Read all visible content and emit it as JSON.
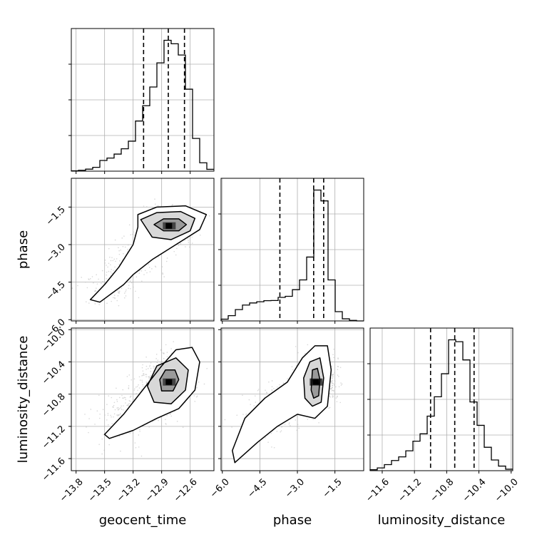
{
  "chart_data": {
    "type": "corner",
    "parameters": [
      "geocent_time",
      "phase",
      "luminosity_distance"
    ],
    "axis_labels": {
      "geocent_time": "geocent_time",
      "phase": "phase",
      "luminosity_distance": "luminosity_distance"
    },
    "ranges": {
      "geocent_time": [
        -13.85,
        -12.35
      ],
      "phase": [
        -6.05,
        -0.35
      ],
      "luminosity_distance": [
        -11.75,
        -9.98
      ]
    },
    "ticks": {
      "geocent_time": [
        -13.8,
        -13.5,
        -13.2,
        -12.9,
        -12.6
      ],
      "phase": [
        -6.0,
        -4.5,
        -3.0,
        -1.5
      ],
      "luminosity_distance": [
        -11.6,
        -11.2,
        -10.8,
        -10.4,
        -10.0
      ]
    },
    "tick_labels": {
      "geocent_time": [
        "−13.8",
        "−13.5",
        "−13.2",
        "−12.9",
        "−12.6"
      ],
      "phase": [
        "−6.0",
        "−4.5",
        "−3.0",
        "−1.5"
      ],
      "luminosity_distance": [
        "−11.6",
        "−11.2",
        "−10.8",
        "−10.4",
        "−10.0"
      ]
    },
    "grid": true,
    "quantiles": {
      "geocent_time": [
        -13.09,
        -12.83,
        -12.66
      ],
      "phase": [
        -3.7,
        -2.35,
        -1.95
      ],
      "luminosity_distance": [
        -11.0,
        -10.7,
        -10.46
      ]
    },
    "histograms": {
      "geocent_time": {
        "edges": [
          -13.85,
          -13.775,
          -13.7,
          -13.625,
          -13.55,
          -13.475,
          -13.4,
          -13.325,
          -13.25,
          -13.175,
          -13.1,
          -13.025,
          -12.95,
          -12.875,
          -12.8,
          -12.725,
          -12.65,
          -12.575,
          -12.5,
          -12.425,
          -12.35
        ],
        "counts": [
          0.2,
          0.5,
          1.1,
          2.1,
          5.9,
          7.2,
          9.4,
          12.3,
          16.5,
          27.6,
          36.0,
          46.3,
          59.6,
          72.0,
          70.1,
          63.9,
          45.1,
          18.0,
          4.6,
          1.0
        ]
      },
      "phase": {
        "edges": [
          -6.05,
          -5.765,
          -5.48,
          -5.195,
          -4.91,
          -4.625,
          -4.34,
          -4.055,
          -3.77,
          -3.485,
          -3.2,
          -2.915,
          -2.63,
          -2.345,
          -2.06,
          -1.775,
          -1.49,
          -1.205,
          -0.92,
          -0.635,
          -0.35
        ],
        "counts": [
          1.0,
          3.0,
          6.5,
          9.1,
          10.3,
          11.0,
          11.6,
          11.7,
          13.5,
          14.1,
          17.9,
          23.5,
          36.6,
          75.0,
          68.8,
          23.5,
          5.3,
          1.2,
          0.3,
          0.0
        ]
      },
      "luminosity_distance": {
        "edges": [
          -11.75,
          -11.6615,
          -11.573,
          -11.4845,
          -11.396,
          -11.3075,
          -11.219,
          -11.1305,
          -11.042,
          -10.9535,
          -10.865,
          -10.7765,
          -10.688,
          -10.5995,
          -10.511,
          -10.4225,
          -10.334,
          -10.2455,
          -10.157,
          -10.0685,
          -9.98
        ],
        "counts": [
          0.5,
          1.5,
          3.3,
          5.5,
          7.5,
          10.8,
          16.0,
          20.0,
          29.6,
          40.1,
          52.6,
          71.0,
          70.0,
          60.1,
          37.3,
          24.6,
          12.7,
          5.8,
          2.5,
          0.8
        ]
      }
    },
    "colors": {
      "line": "#000000",
      "grid": "#b0b0b0",
      "scatter": "#bdbdbd"
    }
  }
}
